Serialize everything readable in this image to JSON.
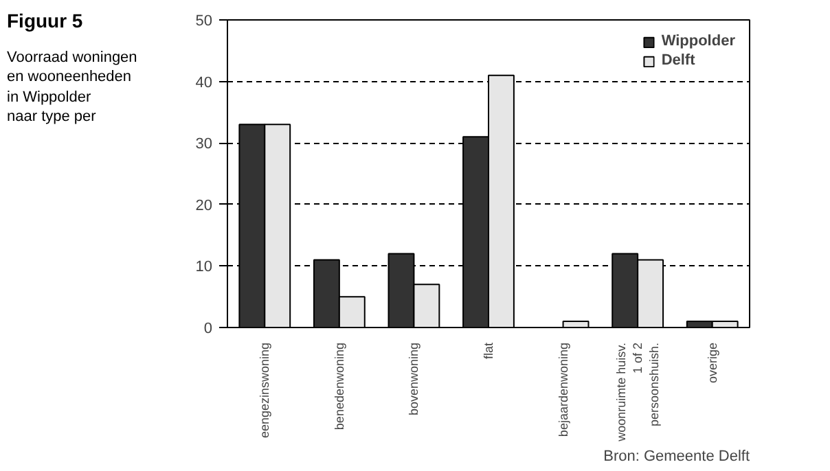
{
  "chart_data": {
    "type": "bar",
    "title": "Figuur 5",
    "subtitle": "Voorraad woningen\nen wooneenheden\nin Wippolder\nnaar type per",
    "annotations": [
      "Bron: Gemeente Delft"
    ],
    "categories": [
      "eengezinswoning",
      "benedenwoning",
      "bovenwoning",
      "flat",
      "bejaardenwoning",
      "woonruimte huisv.\n1 of 2\npersoonshuish.",
      "overige"
    ],
    "series": [
      {
        "name": "Wippolder",
        "color": "#333333",
        "values": [
          33,
          11,
          12,
          31,
          0,
          12,
          1
        ]
      },
      {
        "name": "Delft",
        "color": "#e6e6e6",
        "values": [
          33,
          5,
          7,
          41,
          1,
          11,
          1
        ]
      }
    ],
    "ylim": [
      0,
      50
    ],
    "yticks": [
      0,
      10,
      20,
      30,
      40,
      50
    ],
    "grid": "y",
    "legend": "top right"
  }
}
